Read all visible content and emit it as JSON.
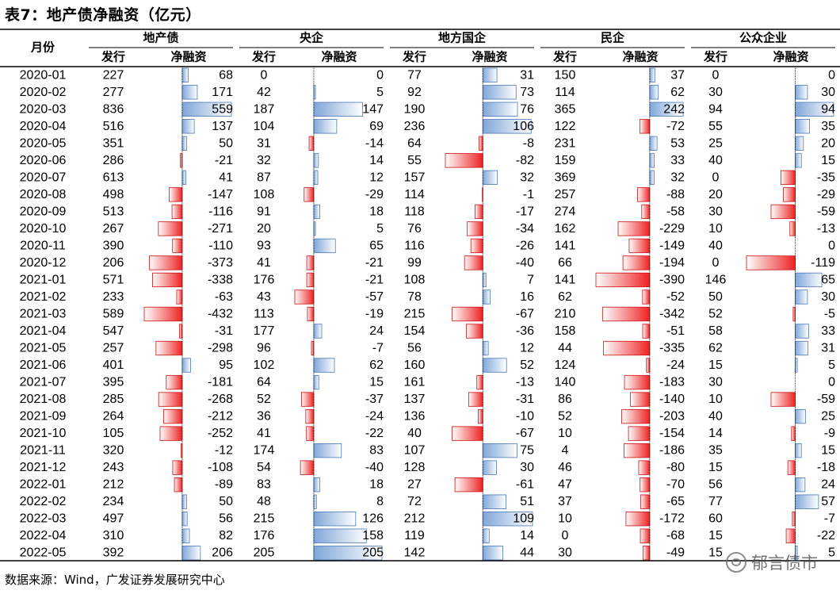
{
  "title": "表7：地产债净融资（亿元）",
  "footer": "数据来源：Wind，广发证券发展研究中心",
  "watermark": "郁言债市",
  "header": {
    "row_label": "月份",
    "groups": [
      "地产债",
      "央企",
      "地方国企",
      "民企",
      "公众企业"
    ],
    "sub": [
      "发行",
      "净融资"
    ]
  },
  "colors": {
    "pos_bar": "#7fa6d8",
    "neg_bar": "#ee2222"
  },
  "chart_data": {
    "type": "table",
    "months": [
      "2020-01",
      "2020-02",
      "2020-03",
      "2020-04",
      "2020-05",
      "2020-06",
      "2020-07",
      "2020-08",
      "2020-09",
      "2020-10",
      "2020-11",
      "2020-12",
      "2021-01",
      "2021-02",
      "2021-03",
      "2021-04",
      "2021-05",
      "2021-06",
      "2021-07",
      "2021-08",
      "2021-09",
      "2021-10",
      "2021-11",
      "2021-12",
      "2022-01",
      "2022-02",
      "2022-03",
      "2022-04",
      "2022-05"
    ],
    "groups": [
      {
        "name": "地产债",
        "issue": [
          227,
          277,
          836,
          516,
          351,
          286,
          613,
          498,
          513,
          267,
          390,
          206,
          571,
          233,
          589,
          547,
          257,
          401,
          395,
          285,
          264,
          105,
          320,
          243,
          212,
          234,
          497,
          310,
          392
        ],
        "net": [
          68,
          171,
          559,
          137,
          50,
          -21,
          41,
          -147,
          -116,
          -271,
          -110,
          -373,
          -338,
          -63,
          -432,
          -31,
          -298,
          95,
          -181,
          -268,
          -212,
          -252,
          -12,
          -108,
          -89,
          50,
          56,
          82,
          206
        ]
      },
      {
        "name": "央企",
        "issue": [
          0,
          42,
          187,
          104,
          31,
          32,
          87,
          108,
          91,
          20,
          93,
          41,
          176,
          43,
          113,
          177,
          96,
          102,
          64,
          52,
          36,
          41,
          174,
          54,
          83,
          48,
          215,
          176,
          205
        ],
        "net": [
          0,
          5,
          147,
          69,
          -14,
          14,
          12,
          -29,
          18,
          5,
          65,
          -21,
          -21,
          -57,
          -19,
          24,
          -7,
          62,
          15,
          -37,
          -24,
          -22,
          83,
          -40,
          18,
          8,
          126,
          158,
          205
        ]
      },
      {
        "name": "地方国企",
        "issue": [
          77,
          92,
          190,
          236,
          64,
          55,
          157,
          114,
          118,
          76,
          116,
          99,
          108,
          78,
          215,
          154,
          56,
          160,
          161,
          137,
          136,
          40,
          107,
          128,
          27,
          72,
          212,
          119,
          142
        ],
        "net": [
          31,
          73,
          76,
          106,
          -8,
          -82,
          32,
          -1,
          -17,
          -34,
          -26,
          -40,
          7,
          16,
          -67,
          -36,
          12,
          52,
          -13,
          -31,
          -10,
          -67,
          75,
          30,
          -61,
          51,
          109,
          14,
          44
        ]
      },
      {
        "name": "民企",
        "issue": [
          150,
          114,
          365,
          122,
          231,
          159,
          369,
          257,
          274,
          162,
          141,
          66,
          141,
          62,
          210,
          158,
          44,
          124,
          140,
          86,
          52,
          10,
          4,
          46,
          47,
          37,
          10,
          0,
          30
        ],
        "net": [
          37,
          62,
          242,
          -72,
          53,
          33,
          32,
          -88,
          -58,
          -229,
          -149,
          -194,
          -390,
          -52,
          -342,
          -51,
          -335,
          -24,
          -183,
          -140,
          -203,
          -154,
          -186,
          -80,
          -70,
          -65,
          -172,
          -68,
          -49
        ]
      },
      {
        "name": "公众企业",
        "issue": [
          0,
          30,
          94,
          55,
          25,
          40,
          0,
          20,
          30,
          10,
          40,
          0,
          146,
          50,
          52,
          58,
          62,
          15,
          30,
          10,
          40,
          14,
          35,
          15,
          56,
          77,
          60,
          15,
          15
        ],
        "net": [
          0,
          30,
          94,
          35,
          20,
          15,
          -35,
          -29,
          -59,
          -13,
          0,
          -119,
          65,
          30,
          -5,
          33,
          31,
          5,
          0,
          -59,
          25,
          -9,
          15,
          -18,
          24,
          57,
          -7,
          -22,
          5
        ]
      }
    ]
  }
}
